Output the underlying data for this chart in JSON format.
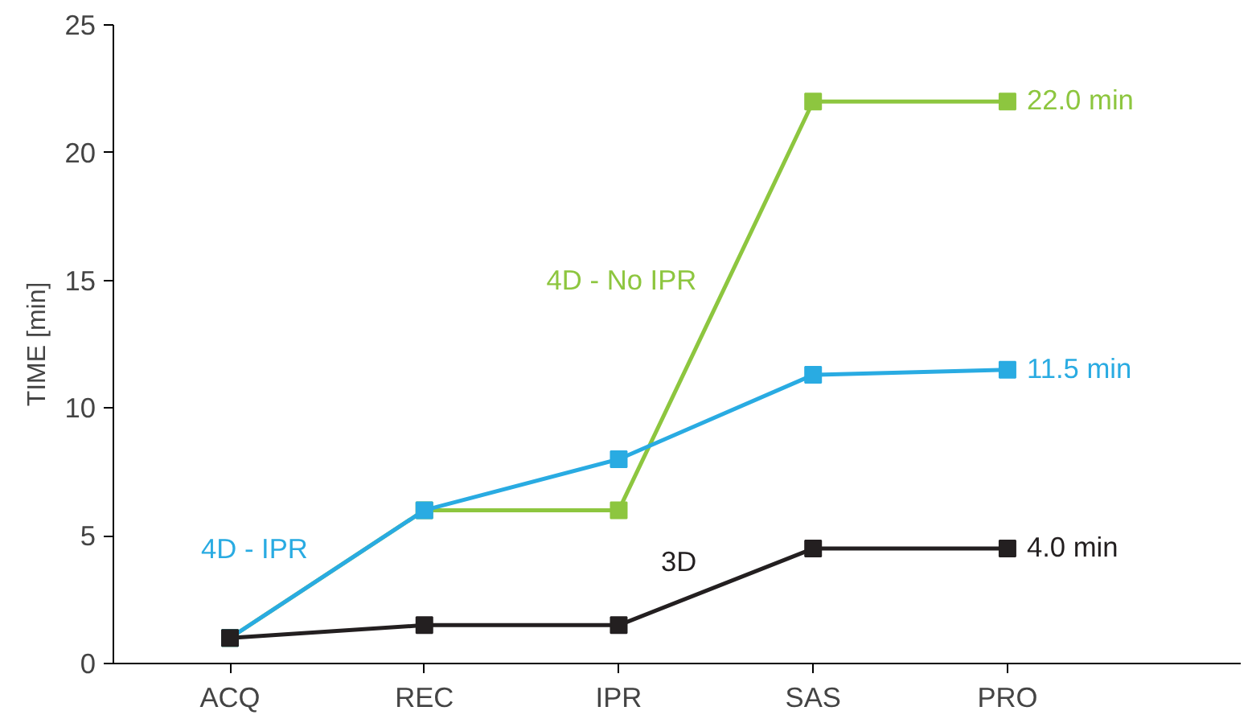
{
  "chart_data": {
    "type": "line",
    "ylabel": "TIME [min]",
    "categories": [
      "ACQ",
      "REC",
      "IPR",
      "SAS",
      "PRO"
    ],
    "series": [
      {
        "name": "4D - No IPR",
        "color": "#8dc63f",
        "values": [
          1,
          6,
          6,
          22,
          22
        ]
      },
      {
        "name": "4D - IPR",
        "color": "#29abe2",
        "values": [
          1,
          6,
          8,
          11.3,
          11.5
        ]
      },
      {
        "name": "3D",
        "color": "#231f20",
        "values": [
          1,
          1.5,
          1.5,
          4.5,
          4.5
        ]
      }
    ],
    "annotations": [
      {
        "text": "22.0 min",
        "x": "PRO",
        "y": 22
      },
      {
        "text": "11.5 min",
        "x": "PRO",
        "y": 11.5
      },
      {
        "text": "4.0 min",
        "x": "PRO",
        "y": 4.5
      }
    ],
    "ylim": [
      0,
      25
    ],
    "yticks": [
      0,
      5,
      10,
      15,
      20,
      25
    ],
    "grid": false,
    "legend": false,
    "marker": "square",
    "line_style": "solid"
  }
}
